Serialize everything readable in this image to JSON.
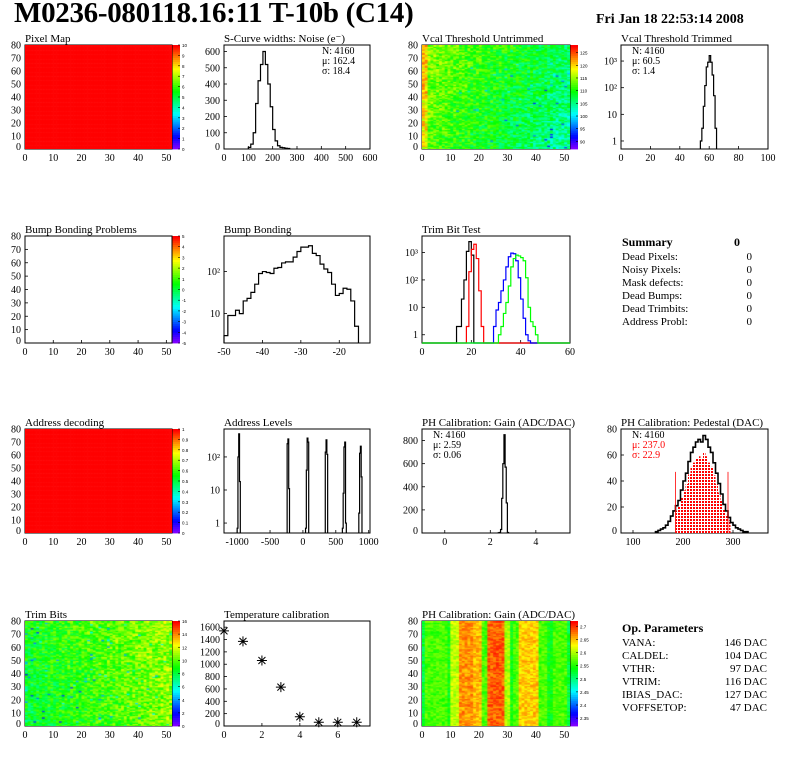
{
  "header": {
    "title": "M0236-080118.16:11 T-10b (C14)",
    "date": "Fri Jan 18 22:53:14 2008"
  },
  "summary": {
    "title": "Summary",
    "total": "0",
    "items": [
      {
        "label": "Dead Pixels:",
        "value": "0"
      },
      {
        "label": "Noisy Pixels:",
        "value": "0"
      },
      {
        "label": "Mask defects:",
        "value": "0"
      },
      {
        "label": "Dead Bumps:",
        "value": "0"
      },
      {
        "label": "Dead Trimbits:",
        "value": "0"
      },
      {
        "label": "Address Probl:",
        "value": "0"
      }
    ]
  },
  "op_parameters": {
    "title": "Op. Parameters",
    "items": [
      {
        "label": "VANA:",
        "value": "146 DAC"
      },
      {
        "label": "CALDEL:",
        "value": "104 DAC"
      },
      {
        "label": "VTHR:",
        "value": "97 DAC"
      },
      {
        "label": "VTRIM:",
        "value": "116 DAC"
      },
      {
        "label": "IBIAS_DAC:",
        "value": "127 DAC"
      },
      {
        "label": "VOFFSETOP:",
        "value": "47 DAC"
      }
    ]
  },
  "colors": {
    "stats_red": "#ff0000",
    "pedestal_fill": "#ff0000"
  },
  "chart_data": [
    {
      "id": "pixel-map",
      "type": "heatmap",
      "title": "Pixel Map",
      "xlim": [
        0,
        52
      ],
      "ylim": [
        0,
        80
      ],
      "xticks": [
        "0",
        "10",
        "20",
        "30",
        "40",
        "50"
      ],
      "yticks": [
        "0",
        "10",
        "20",
        "30",
        "40",
        "50",
        "60",
        "70",
        "80"
      ],
      "zlim": [
        0,
        10
      ],
      "zticks": [
        "0",
        "1",
        "2",
        "3",
        "4",
        "5",
        "6",
        "7",
        "8",
        "9",
        "10"
      ],
      "uniform_value": 10
    },
    {
      "id": "s-curve-widths",
      "type": "hist",
      "title": "S-Curve widths: Noise (e⁻)",
      "xlim": [
        0,
        600
      ],
      "ylim": [
        0,
        640
      ],
      "xticks": [
        "0",
        "100",
        "200",
        "300",
        "400",
        "500",
        "600"
      ],
      "yticks": [
        "0",
        "100",
        "200",
        "300",
        "400",
        "500",
        "600"
      ],
      "stats": {
        "pos": "right",
        "lines": [
          "N: 4160",
          "μ: 162.4",
          "σ: 18.4"
        ]
      },
      "series": [
        {
          "start": 100,
          "width": 10,
          "counts": [
            10,
            30,
            100,
            280,
            420,
            520,
            600,
            520,
            400,
            260,
            120,
            50,
            20,
            10,
            8,
            5,
            3
          ],
          "color": "#000000"
        }
      ]
    },
    {
      "id": "vcal-threshold-untrimmed",
      "type": "heatmap",
      "title": "Vcal Threshold Untrimmed",
      "xlim": [
        0,
        52
      ],
      "ylim": [
        0,
        80
      ],
      "xticks": [
        "0",
        "10",
        "20",
        "30",
        "40",
        "50"
      ],
      "yticks": [
        "0",
        "10",
        "20",
        "30",
        "40",
        "50",
        "60",
        "70",
        "80"
      ],
      "zlim": [
        87,
        128
      ],
      "zticks": [
        "90",
        "95",
        "100",
        "105",
        "110",
        "115",
        "120",
        "125"
      ]
    },
    {
      "id": "vcal-threshold-trimmed",
      "type": "hist",
      "title": "Vcal Threshold Trimmed",
      "xlim": [
        0,
        100
      ],
      "ylim": [
        0.5,
        4000
      ],
      "log": true,
      "xticks": [
        "0",
        "20",
        "40",
        "60",
        "80",
        "100"
      ],
      "yticks": [
        "1",
        "10",
        "10²",
        "10³"
      ],
      "stats": {
        "pos": "left",
        "lines": [
          "N: 4160",
          "μ: 60.5",
          "σ:  1.4"
        ]
      },
      "series": [
        {
          "start": 54,
          "width": 1,
          "counts": [
            1,
            3,
            20,
            120,
            600,
            900,
            1600,
            900,
            300,
            50,
            3
          ],
          "color": "#000000"
        }
      ]
    },
    {
      "id": "bump-bonding-problems",
      "type": "heatmap",
      "title": "Bump Bonding Problems",
      "xlim": [
        0,
        52
      ],
      "ylim": [
        0,
        80
      ],
      "xticks": [
        "0",
        "10",
        "20",
        "30",
        "40",
        "50"
      ],
      "yticks": [
        "0",
        "10",
        "20",
        "30",
        "40",
        "50",
        "60",
        "70",
        "80"
      ],
      "zlim": [
        -5,
        5
      ],
      "zticks": [
        "-5",
        "-4",
        "-3",
        "-2",
        "-1",
        "0",
        "1",
        "2",
        "3",
        "4",
        "5"
      ],
      "empty": true
    },
    {
      "id": "bump-bonding",
      "type": "hist",
      "title": "Bump Bonding",
      "xlim": [
        -50,
        -12
      ],
      "ylim": [
        2,
        700
      ],
      "log": true,
      "xticks": [
        "-50",
        "-40",
        "-30",
        "-20"
      ],
      "yticks": [
        "10",
        "10²"
      ],
      "series": [
        {
          "start": -50,
          "width": 1,
          "counts": [
            3,
            9,
            9,
            12,
            10,
            20,
            23,
            32,
            50,
            90,
            100,
            95,
            90,
            120,
            125,
            160,
            170,
            170,
            220,
            300,
            380,
            380,
            410,
            270,
            240,
            150,
            115,
            95,
            50,
            27,
            30,
            40,
            38,
            20,
            5
          ],
          "color": "#000000"
        }
      ]
    },
    {
      "id": "trim-bit-test",
      "type": "hist",
      "title": "Trim Bit Test",
      "xlim": [
        0,
        60
      ],
      "ylim": [
        0.5,
        4000
      ],
      "log": true,
      "xticks": [
        "0",
        "20",
        "40",
        "60"
      ],
      "yticks": [
        "1",
        "10",
        "10²",
        "10³"
      ],
      "series": [
        {
          "start": 14,
          "width": 1,
          "counts": [
            2,
            2,
            20,
            100,
            1100,
            2500,
            800
          ],
          "color": "#000000"
        },
        {
          "start": 18,
          "width": 1,
          "counts": [
            2,
            200,
            1300,
            2000,
            600,
            40,
            2
          ],
          "color": "#ff0000"
        },
        {
          "start": 29,
          "width": 1,
          "counts": [
            2,
            8,
            15,
            40,
            100,
            300,
            700,
            950,
            900,
            500,
            120,
            20,
            4,
            1,
            0.6
          ],
          "color": "#0000ff"
        },
        {
          "start": 31,
          "width": 1,
          "counts": [
            1,
            2,
            6,
            15,
            60,
            300,
            600,
            800,
            750,
            650,
            500,
            120,
            10,
            3,
            2,
            1
          ],
          "color": "#00ff00"
        }
      ]
    },
    {
      "id": "summary",
      "type": "table"
    },
    {
      "id": "address-decoding",
      "type": "heatmap",
      "title": "Address decoding",
      "xlim": [
        0,
        52
      ],
      "ylim": [
        0,
        80
      ],
      "xticks": [
        "0",
        "10",
        "20",
        "30",
        "40",
        "50"
      ],
      "yticks": [
        "0",
        "10",
        "20",
        "30",
        "40",
        "50",
        "60",
        "70",
        "80"
      ],
      "zlim": [
        0,
        1
      ],
      "zticks": [
        "0",
        "0.1",
        "0.2",
        "0.3",
        "0.4",
        "0.5",
        "0.6",
        "0.7",
        "0.8",
        "0.9",
        "1"
      ],
      "uniform_value": 1
    },
    {
      "id": "address-levels",
      "type": "hist",
      "title": "Address Levels",
      "xlim": [
        -1200,
        1020
      ],
      "ylim": [
        0.5,
        700
      ],
      "log": true,
      "xticks": [
        "-1000",
        "-500",
        "0",
        "500",
        "1000"
      ],
      "yticks": [
        "1",
        "10",
        "10²"
      ],
      "series": [
        {
          "start": -1000,
          "width": 12,
          "counts": [
            0.7,
            100,
            500,
            18
          ],
          "color": "#000000"
        },
        {
          "start": -240,
          "width": 12,
          "counts": [
            250,
            350,
            11
          ],
          "color": "#000000"
        },
        {
          "start": 40,
          "width": 12,
          "counts": [
            0.7,
            40,
            370,
            280
          ],
          "color": "#000000"
        },
        {
          "start": 340,
          "width": 12,
          "counts": [
            140,
            330,
            120
          ],
          "color": "#000000"
        },
        {
          "start": 600,
          "width": 12,
          "counts": [
            0.7,
            8,
            200,
            280,
            1
          ],
          "color": "#000000"
        },
        {
          "start": 850,
          "width": 12,
          "counts": [
            2,
            130,
            210,
            25
          ],
          "color": "#000000"
        }
      ]
    },
    {
      "id": "ph-calibration-gain",
      "type": "hist",
      "title": "PH Calibration: Gain (ADC/DAC)",
      "xlim": [
        -1.0,
        5.5
      ],
      "ylim": [
        0,
        900
      ],
      "xticks": [
        "0",
        "2",
        "4"
      ],
      "yticks": [
        "0",
        "200",
        "400",
        "600",
        "800"
      ],
      "stats": {
        "pos": "left",
        "lines": [
          "N: 4160",
          "μ: 2.59",
          "σ: 0.06"
        ]
      },
      "series": [
        {
          "start": 2.35,
          "width": 0.05,
          "counts": [
            2,
            5,
            30,
            300,
            600,
            850,
            570,
            260,
            5
          ],
          "color": "#000000"
        }
      ]
    },
    {
      "id": "ph-calibration-pedestal",
      "type": "hist",
      "title": "PH Calibration: Pedestal (DAC)",
      "xlim": [
        76,
        370
      ],
      "ylim": [
        0,
        80
      ],
      "xticks": [
        "100",
        "200",
        "300"
      ],
      "yticks": [
        "0",
        "20",
        "40",
        "60",
        "80"
      ],
      "stats": {
        "pos": "left",
        "lines": [
          "N: 4160",
          "μ: 237.0",
          "σ: 22.9"
        ],
        "red_from": 1
      },
      "fill_range": [
        185,
        290
      ],
      "markers": [
        185,
        290
      ],
      "series": [
        {
          "start": 145,
          "width": 5,
          "counts": [
            1,
            2,
            3,
            4,
            6,
            9,
            13,
            17,
            21,
            25,
            33,
            40,
            46,
            55,
            62,
            66,
            70,
            72,
            70,
            75,
            72,
            66,
            62,
            54,
            46,
            38,
            30,
            22,
            17,
            12,
            8,
            6,
            4,
            3,
            2,
            1,
            1
          ],
          "color": "#000000"
        }
      ]
    },
    {
      "id": "trim-bits",
      "type": "heatmap",
      "title": "Trim Bits",
      "xlim": [
        0,
        52
      ],
      "ylim": [
        0,
        80
      ],
      "xticks": [
        "0",
        "10",
        "20",
        "30",
        "40",
        "50"
      ],
      "yticks": [
        "0",
        "10",
        "20",
        "30",
        "40",
        "50",
        "60",
        "70",
        "80"
      ],
      "zlim": [
        0,
        16
      ],
      "zticks": [
        "0",
        "2",
        "4",
        "6",
        "8",
        "10",
        "12",
        "14",
        "16"
      ]
    },
    {
      "id": "temperature-calibration",
      "type": "scatter",
      "title": "Temperature calibration",
      "xlim": [
        0,
        7.7
      ],
      "ylim": [
        0,
        1700
      ],
      "xticks": [
        "0",
        "2",
        "4",
        "6"
      ],
      "yticks": [
        "0",
        "200",
        "400",
        "600",
        "800",
        "1000",
        "1200",
        "1400",
        "1600"
      ],
      "x": [
        0,
        1,
        2,
        3,
        4,
        5,
        6,
        7
      ],
      "y": [
        1540,
        1370,
        1060,
        630,
        150,
        60,
        60,
        60
      ]
    },
    {
      "id": "ph-calibration-gain-map",
      "type": "heatmap",
      "title": "PH Calibration: Gain (ADC/DAC)",
      "xlim": [
        0,
        52
      ],
      "ylim": [
        0,
        80
      ],
      "xticks": [
        "0",
        "10",
        "20",
        "30",
        "40",
        "50"
      ],
      "yticks": [
        "0",
        "10",
        "20",
        "30",
        "40",
        "50",
        "60",
        "70",
        "80"
      ],
      "zlim": [
        2.32,
        2.72
      ],
      "zticks": [
        "2.35",
        "2.4",
        "2.45",
        "2.5",
        "2.55",
        "2.6",
        "2.65",
        "2.7"
      ]
    },
    {
      "id": "op-parameters",
      "type": "table"
    }
  ]
}
